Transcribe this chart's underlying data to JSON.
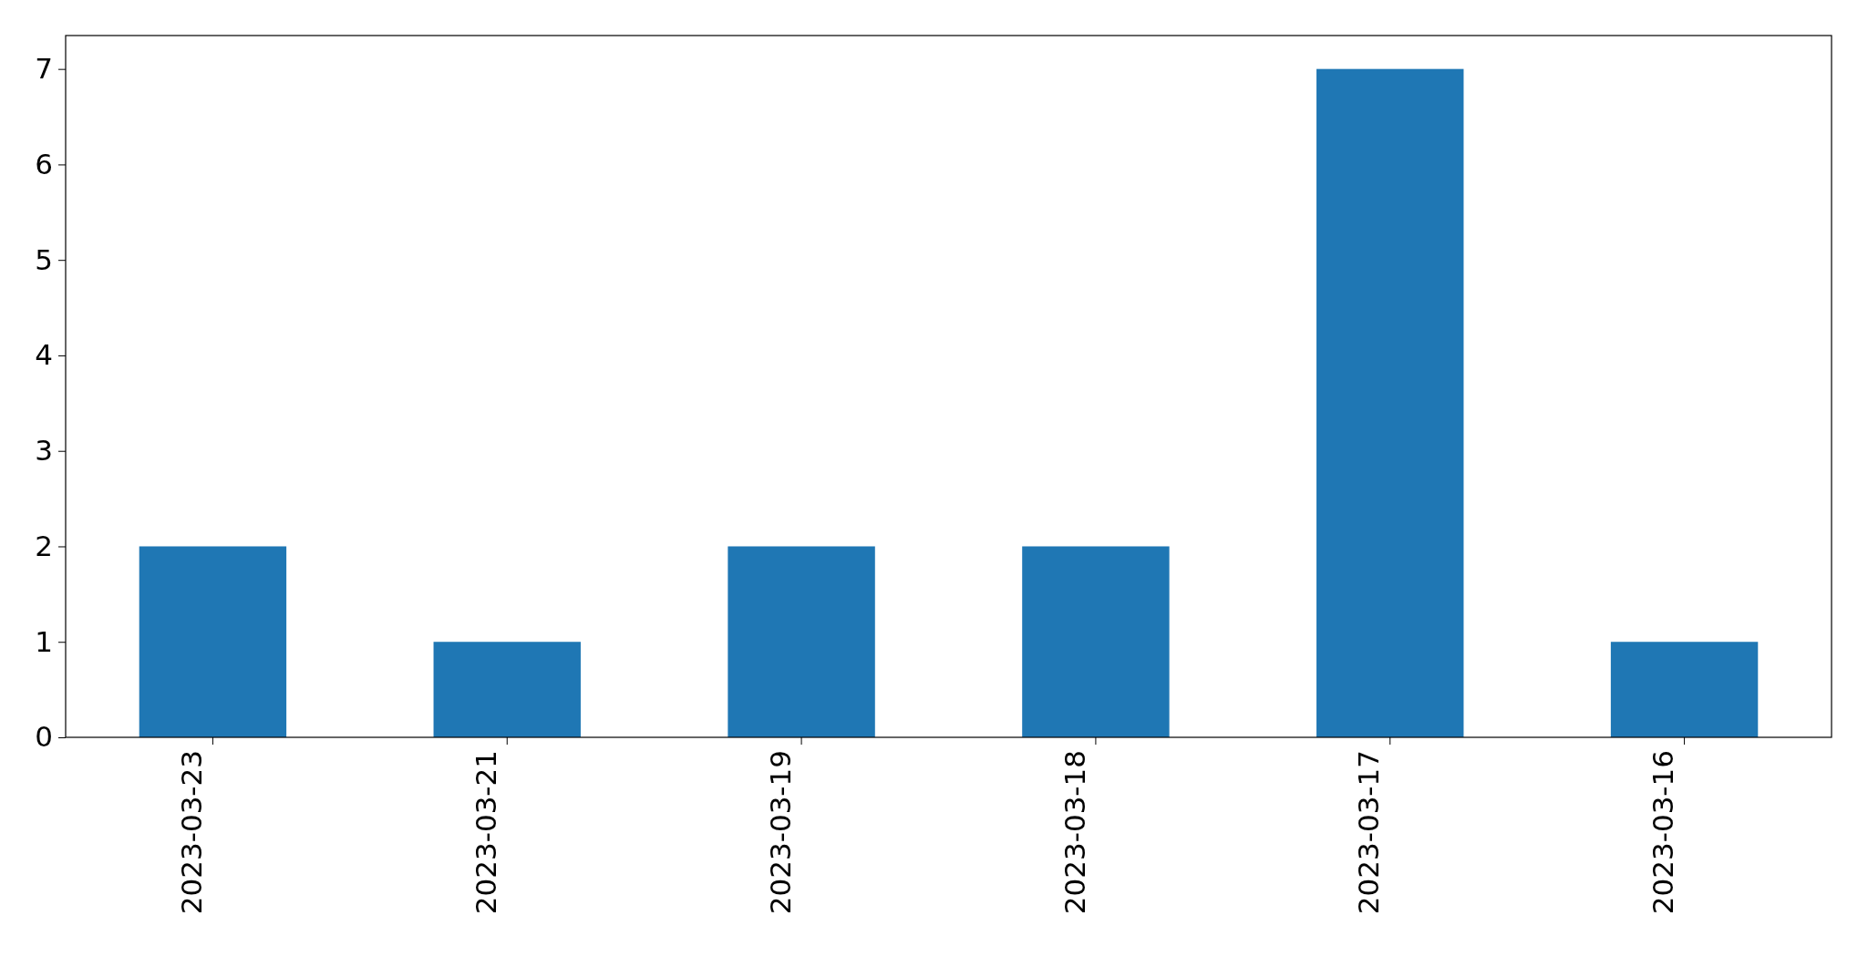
{
  "chart_data": {
    "type": "bar",
    "categories": [
      "2023-03-23",
      "2023-03-21",
      "2023-03-19",
      "2023-03-18",
      "2023-03-17",
      "2023-03-16"
    ],
    "values": [
      2,
      1,
      2,
      2,
      7,
      1
    ],
    "color": "#1f77b4",
    "ylim": [
      0,
      7.35
    ],
    "yticks": [
      0,
      1,
      2,
      3,
      4,
      5,
      6,
      7
    ],
    "grid": false
  }
}
